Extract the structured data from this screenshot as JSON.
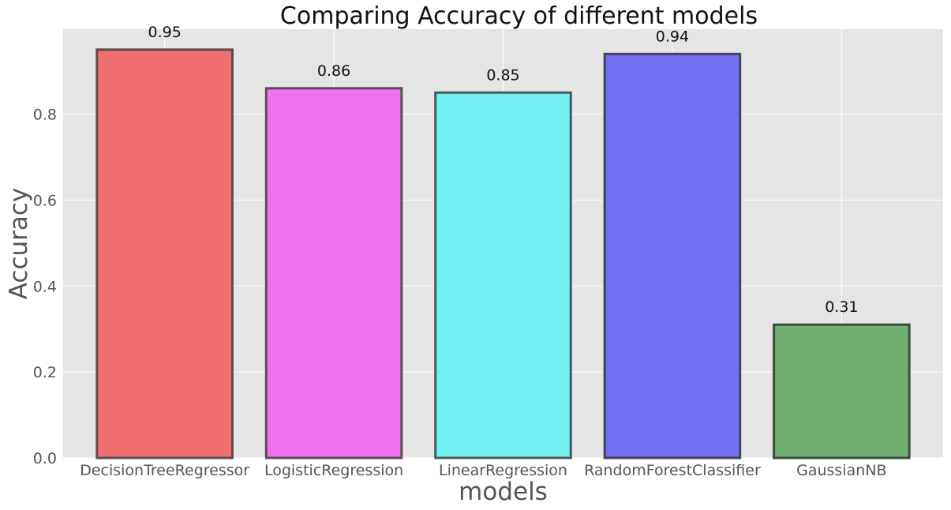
{
  "chart_data": {
    "type": "bar",
    "title": "Comparing Accuracy of different models",
    "xlabel": "models",
    "ylabel": "Accuracy",
    "categories": [
      "DecisionTreeRegressor",
      "LogisticRegression",
      "LinearRegression",
      "RandomForestClassifier",
      "GaussianNB"
    ],
    "values": [
      0.95,
      0.86,
      0.85,
      0.94,
      0.31
    ],
    "data_labels": [
      "0.95",
      "0.86",
      "0.85",
      "0.94",
      "0.31"
    ],
    "ylim": [
      0,
      0.9975
    ],
    "yticks": [
      0.0,
      0.2,
      0.4,
      0.6,
      0.8
    ],
    "ytick_labels": [
      "0.0",
      "0.2",
      "0.4",
      "0.6",
      "0.8"
    ],
    "grid": true,
    "colors": {
      "background": "#e5e5e5",
      "grid": "#ffffff",
      "bars": [
        "#f07070",
        "#f072f0",
        "#72f0f2",
        "#7070f0",
        "#70b070"
      ],
      "bar_edges": [
        "#5c4b4b",
        "#5c4b5c",
        "#465c5c",
        "#42425c",
        "#3e4a3e"
      ]
    }
  }
}
